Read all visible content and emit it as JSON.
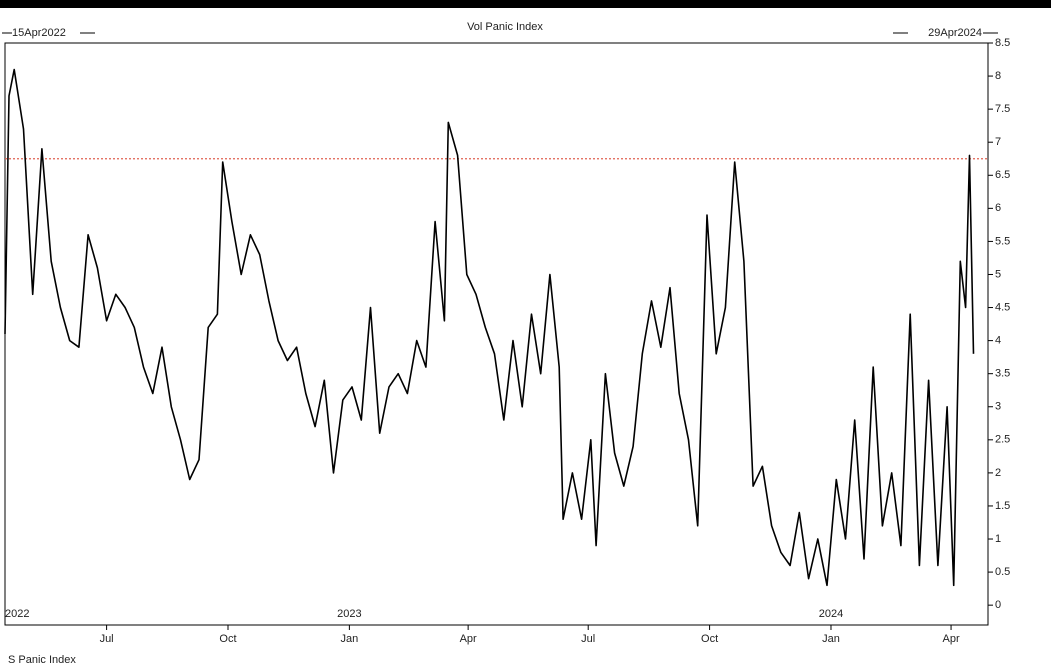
{
  "chart_data": {
    "type": "line",
    "title": "Vol Panic Index",
    "xlim": [
      {
        "value": "2022-04-15",
        "label": "15Apr2022"
      },
      {
        "value": "2024-04-29",
        "label": "29Apr2024"
      }
    ],
    "xticks": [
      {
        "value": "2022-07-01",
        "label": "Jul"
      },
      {
        "value": "2022-10-01",
        "label": "Oct"
      },
      {
        "value": "2023-01-01",
        "label": "Jan"
      },
      {
        "value": "2023-04-01",
        "label": "Apr"
      },
      {
        "value": "2023-07-01",
        "label": "Jul"
      },
      {
        "value": "2023-10-01",
        "label": "Oct"
      },
      {
        "value": "2024-01-01",
        "label": "Jan"
      },
      {
        "value": "2024-04-01",
        "label": "Apr"
      }
    ],
    "year_labels": [
      {
        "value": "2022-04-15",
        "label": "2022"
      },
      {
        "value": "2023-01-01",
        "label": "2023"
      },
      {
        "value": "2024-01-01",
        "label": "2024"
      }
    ],
    "ylim": [
      -0.3,
      8.5
    ],
    "yticks": [
      0,
      0.5,
      1,
      1.5,
      2,
      2.5,
      3,
      3.5,
      4,
      4.5,
      5,
      5.5,
      6,
      6.5,
      7,
      7.5,
      8,
      8.5
    ],
    "reference_line": {
      "value": 6.75,
      "color": "#e06050"
    },
    "series": [
      {
        "name": "S Panic Index",
        "color": "#000000",
        "x": [
          "2022-04-15",
          "2022-04-18",
          "2022-04-22",
          "2022-04-29",
          "2022-05-06",
          "2022-05-13",
          "2022-05-20",
          "2022-05-27",
          "2022-06-03",
          "2022-06-10",
          "2022-06-17",
          "2022-06-24",
          "2022-07-01",
          "2022-07-08",
          "2022-07-15",
          "2022-07-22",
          "2022-07-29",
          "2022-08-05",
          "2022-08-12",
          "2022-08-19",
          "2022-08-26",
          "2022-09-02",
          "2022-09-09",
          "2022-09-16",
          "2022-09-23",
          "2022-09-27",
          "2022-10-04",
          "2022-10-11",
          "2022-10-18",
          "2022-10-25",
          "2022-11-01",
          "2022-11-08",
          "2022-11-15",
          "2022-11-22",
          "2022-11-29",
          "2022-12-06",
          "2022-12-13",
          "2022-12-20",
          "2022-12-27",
          "2023-01-03",
          "2023-01-10",
          "2023-01-17",
          "2023-01-24",
          "2023-01-31",
          "2023-02-07",
          "2023-02-14",
          "2023-02-21",
          "2023-02-28",
          "2023-03-07",
          "2023-03-14",
          "2023-03-17",
          "2023-03-24",
          "2023-03-31",
          "2023-04-07",
          "2023-04-14",
          "2023-04-21",
          "2023-04-28",
          "2023-05-05",
          "2023-05-12",
          "2023-05-19",
          "2023-05-26",
          "2023-06-02",
          "2023-06-09",
          "2023-06-12",
          "2023-06-19",
          "2023-06-26",
          "2023-07-03",
          "2023-07-07",
          "2023-07-14",
          "2023-07-21",
          "2023-07-28",
          "2023-08-04",
          "2023-08-11",
          "2023-08-18",
          "2023-08-25",
          "2023-09-01",
          "2023-09-08",
          "2023-09-15",
          "2023-09-22",
          "2023-09-29",
          "2023-10-06",
          "2023-10-13",
          "2023-10-20",
          "2023-10-27",
          "2023-11-03",
          "2023-11-10",
          "2023-11-17",
          "2023-11-24",
          "2023-12-01",
          "2023-12-08",
          "2023-12-15",
          "2023-12-22",
          "2023-12-29",
          "2024-01-05",
          "2024-01-12",
          "2024-01-19",
          "2024-01-26",
          "2024-02-02",
          "2024-02-09",
          "2024-02-16",
          "2024-02-23",
          "2024-03-01",
          "2024-03-08",
          "2024-03-15",
          "2024-03-22",
          "2024-03-29",
          "2024-04-03",
          "2024-04-08",
          "2024-04-12",
          "2024-04-15",
          "2024-04-18"
        ],
        "values": [
          4.1,
          7.7,
          8.1,
          7.2,
          4.7,
          6.9,
          5.2,
          4.5,
          4.0,
          3.9,
          5.6,
          5.1,
          4.3,
          4.7,
          4.5,
          4.2,
          3.6,
          3.2,
          3.9,
          3.0,
          2.5,
          1.9,
          2.2,
          4.2,
          4.4,
          6.7,
          5.8,
          5.0,
          5.6,
          5.3,
          4.6,
          4.0,
          3.7,
          3.9,
          3.2,
          2.7,
          3.4,
          2.0,
          3.1,
          3.3,
          2.8,
          4.5,
          2.6,
          3.3,
          3.5,
          3.2,
          4.0,
          3.6,
          5.8,
          4.3,
          7.3,
          6.8,
          5.0,
          4.7,
          4.2,
          3.8,
          2.8,
          4.0,
          3.0,
          4.4,
          3.5,
          5.0,
          3.6,
          1.3,
          2.0,
          1.3,
          2.5,
          0.9,
          3.5,
          2.3,
          1.8,
          2.4,
          3.8,
          4.6,
          3.9,
          4.8,
          3.2,
          2.5,
          1.2,
          5.9,
          3.8,
          4.5,
          6.7,
          5.2,
          1.8,
          2.1,
          1.2,
          0.8,
          0.6,
          1.4,
          0.4,
          1.0,
          0.3,
          1.9,
          1.0,
          2.8,
          0.7,
          3.6,
          1.2,
          2.0,
          0.9,
          4.4,
          0.6,
          3.4,
          0.6,
          3.0,
          0.3,
          5.2,
          4.5,
          6.8,
          3.8
        ]
      }
    ]
  }
}
